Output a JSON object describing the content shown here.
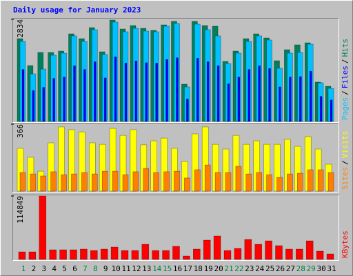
{
  "title": "Daily usage for January 2023",
  "title_color": "#0000ff",
  "chart_data": [
    {
      "type": "bar",
      "ylim": [
        0,
        2834
      ],
      "yticks": [
        2834
      ],
      "legend_separator": "/",
      "series": [
        {
          "name": "Pages",
          "color": "#00c0ff",
          "values": [
            2221,
            1321,
            1455,
            1838,
            1896,
            2375,
            2221,
            2547,
            1858,
            2758,
            2490,
            2585,
            2509,
            2490,
            2643,
            2719,
            958,
            2700,
            2547,
            2375,
            1609,
            1896,
            2221,
            2375,
            2260,
            1475,
            1896,
            1915,
            2145,
            1072,
            919
          ]
        },
        {
          "name": "Files",
          "color": "#0000ff",
          "values": [
            1444,
            859,
            946,
            1195,
            1232,
            1544,
            1444,
            1656,
            1208,
            1793,
            1619,
            1680,
            1631,
            1619,
            1718,
            1767,
            623,
            1755,
            1656,
            1544,
            1046,
            1232,
            1444,
            1544,
            1469,
            959,
            1232,
            1245,
            1394,
            697,
            597
          ]
        },
        {
          "name": "Hits",
          "color": "#00805c",
          "values": [
            2298,
            1551,
            1915,
            1915,
            1953,
            2432,
            2298,
            2604,
            1934,
            2815,
            2566,
            2662,
            2585,
            2528,
            2681,
            2777,
            1034,
            2777,
            2662,
            2643,
            1666,
            1953,
            2298,
            2432,
            2317,
            1685,
            1991,
            2126,
            2183,
            1092,
            977
          ]
        }
      ]
    },
    {
      "type": "bar",
      "ylim": [
        0,
        366
      ],
      "yticks": [
        366
      ],
      "legend_separator": "/",
      "series": [
        {
          "name": "Sites",
          "color": "#ff8000",
          "values": [
            102,
            94,
            83,
            106,
            90,
            94,
            102,
            94,
            109,
            109,
            90,
            106,
            124,
            102,
            106,
            109,
            72,
            117,
            143,
            102,
            102,
            136,
            94,
            102,
            90,
            75,
            94,
            98,
            117,
            117,
            102
          ]
        },
        {
          "name": "Visits",
          "color": "#ffff00",
          "values": [
            234,
            185,
            109,
            264,
            351,
            336,
            324,
            264,
            256,
            343,
            305,
            336,
            253,
            275,
            290,
            234,
            162,
            313,
            351,
            256,
            230,
            305,
            256,
            275,
            256,
            256,
            283,
            245,
            298,
            230,
            147
          ]
        }
      ]
    },
    {
      "type": "bar",
      "ylim": [
        0,
        114849
      ],
      "yticks": [
        114849
      ],
      "categories": [
        "1",
        "2",
        "3",
        "4",
        "5",
        "6",
        "7",
        "8",
        "9",
        "10",
        "11",
        "12",
        "13",
        "14",
        "15",
        "16",
        "17",
        "18",
        "19",
        "20",
        "21",
        "22",
        "23",
        "24",
        "25",
        "26",
        "27",
        "28",
        "29",
        "30",
        "31"
      ],
      "label_color": "#000000",
      "weekend_label_color": "#008040",
      "weekend_indices": [
        0,
        6,
        7,
        13,
        14,
        20,
        21,
        27,
        28
      ],
      "series": [
        {
          "name": "KBytes",
          "color": "#ff0000",
          "values": [
            13729,
            13729,
            114849,
            17475,
            17475,
            17475,
            18723,
            16227,
            18723,
            22466,
            16227,
            16227,
            27457,
            16227,
            16227,
            23714,
            6240,
            18723,
            34947,
            42434,
            16227,
            19970,
            36195,
            27457,
            33699,
            24962,
            18723,
            18723,
            33699,
            14977,
            9984
          ]
        }
      ]
    }
  ]
}
